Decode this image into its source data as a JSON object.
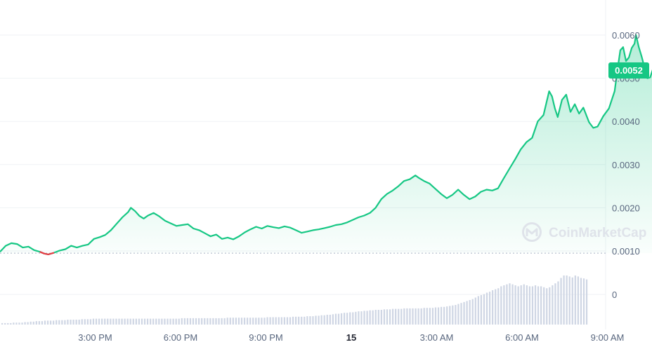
{
  "chart_data": {
    "type": "area",
    "title": "",
    "xlabel": "",
    "ylabel": "",
    "ylim": [
      0.0003,
      0.0069
    ],
    "yticks": [
      "0.0060",
      "0.0050",
      "0.0040",
      "0.0030",
      "0.0020",
      "0.0010"
    ],
    "ytick_values": [
      0.006,
      0.005,
      0.004,
      0.003,
      0.002,
      0.001
    ],
    "volume_tick_label": "0",
    "xticks": [
      {
        "label": "3:00 PM",
        "t": 3,
        "bold": false
      },
      {
        "label": "6:00 PM",
        "t": 6,
        "bold": false
      },
      {
        "label": "9:00 PM",
        "t": 9,
        "bold": false
      },
      {
        "label": "15",
        "t": 12,
        "bold": true
      },
      {
        "label": "3:00 AM",
        "t": 15,
        "bold": false
      },
      {
        "label": "6:00 AM",
        "t": 18,
        "bold": false
      },
      {
        "label": "9:00 AM",
        "t": 21,
        "bold": false
      }
    ],
    "baseline_value": 0.00095,
    "current_price_label": "0.0052",
    "current_price": 0.0052,
    "watermark": "CoinMarketCap",
    "colors": {
      "up": "#16c784",
      "down": "#ea3943",
      "grid": "#eff2f5",
      "baseline": "#a6b0c3",
      "volume": "#cfd6e4",
      "watermark": "#dfe3ea"
    },
    "series": [
      {
        "points": [
          [
            0.0,
            0.00098
          ],
          [
            0.2,
            0.00112
          ],
          [
            0.4,
            0.00118
          ],
          [
            0.6,
            0.00116
          ],
          [
            0.8,
            0.00108
          ],
          [
            1.0,
            0.0011
          ],
          [
            1.2,
            0.00102
          ],
          [
            1.4,
            0.00098
          ],
          [
            1.55,
            0.00094
          ],
          [
            1.7,
            0.00092
          ],
          [
            1.9,
            0.00096
          ],
          [
            2.1,
            0.00101
          ],
          [
            2.3,
            0.00104
          ],
          [
            2.5,
            0.00112
          ],
          [
            2.7,
            0.00108
          ],
          [
            2.9,
            0.00112
          ],
          [
            3.1,
            0.00115
          ],
          [
            3.3,
            0.00128
          ],
          [
            3.5,
            0.00132
          ],
          [
            3.7,
            0.00137
          ],
          [
            3.9,
            0.00148
          ],
          [
            4.1,
            0.00163
          ],
          [
            4.3,
            0.00178
          ],
          [
            4.5,
            0.0019
          ],
          [
            4.6,
            0.002
          ],
          [
            4.75,
            0.00192
          ],
          [
            4.9,
            0.00181
          ],
          [
            5.05,
            0.00175
          ],
          [
            5.2,
            0.00182
          ],
          [
            5.4,
            0.00188
          ],
          [
            5.6,
            0.0018
          ],
          [
            5.8,
            0.0017
          ],
          [
            6.0,
            0.00164
          ],
          [
            6.2,
            0.00158
          ],
          [
            6.4,
            0.0016
          ],
          [
            6.6,
            0.00162
          ],
          [
            6.8,
            0.00152
          ],
          [
            7.0,
            0.00148
          ],
          [
            7.2,
            0.00141
          ],
          [
            7.4,
            0.00134
          ],
          [
            7.6,
            0.00138
          ],
          [
            7.8,
            0.00128
          ],
          [
            8.0,
            0.00131
          ],
          [
            8.2,
            0.00127
          ],
          [
            8.4,
            0.00134
          ],
          [
            8.6,
            0.00143
          ],
          [
            8.8,
            0.0015
          ],
          [
            9.0,
            0.00156
          ],
          [
            9.2,
            0.00152
          ],
          [
            9.4,
            0.00158
          ],
          [
            9.6,
            0.00155
          ],
          [
            9.8,
            0.00153
          ],
          [
            10.0,
            0.00157
          ],
          [
            10.2,
            0.00154
          ],
          [
            10.4,
            0.00148
          ],
          [
            10.6,
            0.00142
          ],
          [
            10.8,
            0.00145
          ],
          [
            11.0,
            0.00148
          ],
          [
            11.2,
            0.0015
          ],
          [
            11.4,
            0.00153
          ],
          [
            11.6,
            0.00156
          ],
          [
            11.8,
            0.0016
          ],
          [
            12.0,
            0.00162
          ],
          [
            12.2,
            0.00166
          ],
          [
            12.4,
            0.00172
          ],
          [
            12.6,
            0.00178
          ],
          [
            12.8,
            0.00182
          ],
          [
            13.0,
            0.00188
          ],
          [
            13.2,
            0.002
          ],
          [
            13.4,
            0.0022
          ],
          [
            13.6,
            0.00232
          ],
          [
            13.8,
            0.0024
          ],
          [
            14.0,
            0.0025
          ],
          [
            14.2,
            0.00262
          ],
          [
            14.4,
            0.00266
          ],
          [
            14.6,
            0.00275
          ],
          [
            14.7,
            0.0027
          ],
          [
            14.9,
            0.00262
          ],
          [
            15.1,
            0.00256
          ],
          [
            15.3,
            0.00244
          ],
          [
            15.5,
            0.00232
          ],
          [
            15.7,
            0.00222
          ],
          [
            15.9,
            0.0023
          ],
          [
            16.1,
            0.00242
          ],
          [
            16.3,
            0.0023
          ],
          [
            16.5,
            0.0022
          ],
          [
            16.7,
            0.00226
          ],
          [
            16.9,
            0.00237
          ],
          [
            17.1,
            0.00242
          ],
          [
            17.3,
            0.0024
          ],
          [
            17.5,
            0.00245
          ],
          [
            17.7,
            0.00268
          ],
          [
            17.9,
            0.0029
          ],
          [
            18.1,
            0.00312
          ],
          [
            18.3,
            0.00335
          ],
          [
            18.5,
            0.00352
          ],
          [
            18.7,
            0.00362
          ],
          [
            18.9,
            0.004
          ],
          [
            19.1,
            0.00415
          ],
          [
            19.3,
            0.0047
          ],
          [
            19.4,
            0.00458
          ],
          [
            19.5,
            0.0043
          ],
          [
            19.6,
            0.0041
          ],
          [
            19.75,
            0.0045
          ],
          [
            19.9,
            0.00462
          ],
          [
            20.05,
            0.00422
          ],
          [
            20.2,
            0.0044
          ],
          [
            20.35,
            0.00418
          ],
          [
            20.5,
            0.00432
          ],
          [
            20.7,
            0.00398
          ],
          [
            20.85,
            0.00385
          ],
          [
            21.0,
            0.00388
          ],
          [
            21.2,
            0.00412
          ],
          [
            21.4,
            0.0043
          ],
          [
            21.6,
            0.0047
          ],
          [
            21.7,
            0.0052
          ],
          [
            21.8,
            0.00565
          ],
          [
            21.9,
            0.00572
          ],
          [
            22.0,
            0.0054
          ],
          [
            22.1,
            0.00548
          ],
          [
            22.2,
            0.0057
          ],
          [
            22.3,
            0.0058
          ],
          [
            22.35,
            0.006
          ],
          [
            22.45,
            0.00572
          ],
          [
            22.55,
            0.0055
          ],
          [
            22.65,
            0.00525
          ],
          [
            22.75,
            0.005
          ],
          [
            22.85,
            0.00502
          ],
          [
            22.95,
            0.00522
          ],
          [
            23.05,
            0.0052
          ]
        ]
      }
    ],
    "volume": [
      0.03,
      0.03,
      0.03,
      0.03,
      0.04,
      0.04,
      0.04,
      0.04,
      0.05,
      0.05,
      0.06,
      0.06,
      0.07,
      0.07,
      0.07,
      0.08,
      0.08,
      0.08,
      0.08,
      0.09,
      0.09,
      0.09,
      0.09,
      0.1,
      0.1,
      0.1,
      0.1,
      0.1,
      0.11,
      0.11,
      0.11,
      0.11,
      0.12,
      0.12,
      0.12,
      0.12,
      0.12,
      0.12,
      0.12,
      0.12,
      0.12,
      0.12,
      0.12,
      0.12,
      0.12,
      0.12,
      0.12,
      0.12,
      0.12,
      0.12,
      0.12,
      0.12,
      0.12,
      0.12,
      0.12,
      0.12,
      0.12,
      0.12,
      0.12,
      0.12,
      0.12,
      0.12,
      0.12,
      0.13,
      0.13,
      0.13,
      0.13,
      0.13,
      0.13,
      0.13,
      0.13,
      0.13,
      0.13,
      0.13,
      0.13,
      0.13,
      0.13,
      0.13,
      0.13,
      0.14,
      0.14,
      0.14,
      0.14,
      0.14,
      0.14,
      0.14,
      0.14,
      0.14,
      0.14,
      0.14,
      0.14,
      0.14,
      0.14,
      0.15,
      0.15,
      0.15,
      0.15,
      0.15,
      0.15,
      0.15,
      0.15,
      0.15,
      0.16,
      0.16,
      0.16,
      0.16,
      0.16,
      0.17,
      0.17,
      0.17,
      0.18,
      0.18,
      0.19,
      0.19,
      0.2,
      0.2,
      0.21,
      0.22,
      0.22,
      0.23,
      0.24,
      0.24,
      0.25,
      0.25,
      0.26,
      0.27,
      0.27,
      0.28,
      0.28,
      0.29,
      0.29,
      0.3,
      0.3,
      0.3,
      0.31,
      0.31,
      0.31,
      0.32,
      0.32,
      0.32,
      0.32,
      0.33,
      0.33,
      0.33,
      0.33,
      0.33,
      0.33,
      0.33,
      0.34,
      0.34,
      0.34,
      0.34,
      0.35,
      0.35,
      0.36,
      0.36,
      0.37,
      0.38,
      0.39,
      0.4,
      0.42,
      0.44,
      0.46,
      0.48,
      0.5,
      0.52,
      0.55,
      0.58,
      0.6,
      0.62,
      0.65,
      0.67,
      0.7,
      0.72,
      0.74,
      0.78,
      0.8,
      0.82,
      0.84,
      0.82,
      0.8,
      0.78,
      0.8,
      0.82,
      0.8,
      0.78,
      0.78,
      0.8,
      0.78,
      0.78,
      0.76,
      0.74,
      0.76,
      0.8,
      0.84,
      0.88,
      0.95,
      1.0,
      1.0,
      0.98,
      0.96,
      1.0,
      0.98,
      0.95,
      0.94,
      0.92
    ]
  }
}
